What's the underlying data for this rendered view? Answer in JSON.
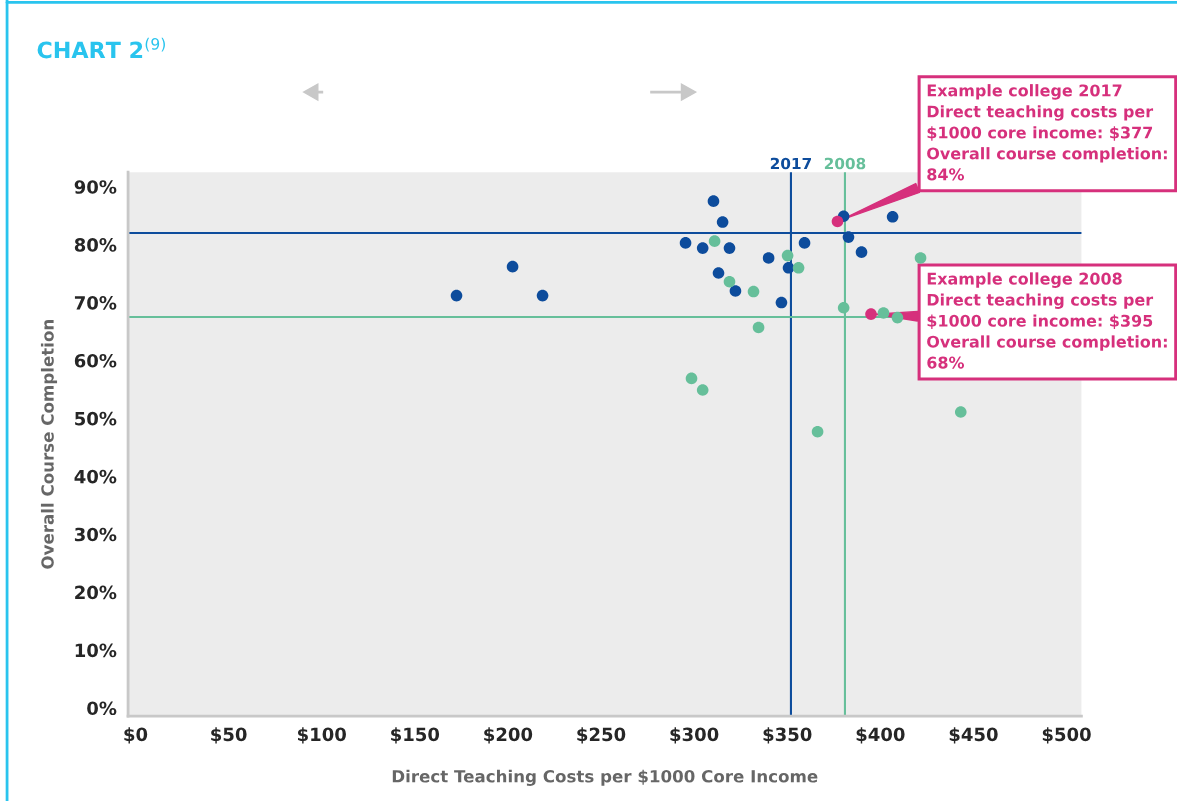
{
  "chart_data": {
    "type": "scatter",
    "title": "CHART 2$^{(9)}$",
    "xlabel": "Direct Teaching Costs per $1000 Core Income",
    "ylabel": "Overall Course Completion",
    "series": [
      {
        "color": "#0d4c9c",
        "x": [
          172.4,
          202.5,
          218.6,
          310.4,
          315.3,
          295.4,
          304.6,
          319.0,
          359.3,
          340.0,
          350.7,
          313.1,
          322.2,
          346.9,
          380.3,
          382.9,
          389.9,
          406.6
        ],
        "values": [
          71.2,
          76.2,
          71.2,
          87.5,
          83.9,
          80.3,
          79.4,
          79.4,
          80.3,
          77.7,
          76.0,
          75.1,
          72.0,
          70.0,
          84.9,
          81.3,
          78.7,
          84.8
        ]
      },
      {
        "color": "#66bf9a",
        "x": [
          311.0,
          350.2,
          356.1,
          319.0,
          331.9,
          334.6,
          380.3,
          401.7,
          409.2,
          421.6,
          298.6,
          304.6,
          366.3,
          443.2
        ],
        "values": [
          80.6,
          78.1,
          76.0,
          73.6,
          71.9,
          65.7,
          69.1,
          68.2,
          67.4,
          77.7,
          56.9,
          54.9,
          47.7,
          51.1
        ]
      },
      {
        "color": "#d6307c",
        "x": [
          377,
          395
        ],
        "values": [
          84,
          68
        ]
      }
    ],
    "annotations": [
      {
        "text": "Example college 2017\nDirect teaching costs per\n$1000 core income: $377\nOverall course completion:\n84%",
        "x": 377,
        "y": 84
      },
      {
        "text": "Example college 2008\nDirect teaching costs per\n$1000 core income: $395\nOverall course completion:\n68%",
        "x": 395,
        "y": 68
      },
      {
        "text": "2017",
        "x": 352,
        "y": 92.5
      },
      {
        "text": "2008",
        "x": 381,
        "y": 92.5
      }
    ],
    "ref_lines": [
      {
        "axis": "x",
        "value": 352,
        "color": "#0d4c9c"
      },
      {
        "axis": "x",
        "value": 381,
        "color": "#66bf9a"
      },
      {
        "axis": "y",
        "value": 82,
        "color": "#0d4c9c"
      },
      {
        "axis": "y",
        "value": 67.5,
        "color": "#66bf9a"
      }
    ],
    "xlim": [
      -4,
      508
    ],
    "xticks": [
      {
        "value": 0,
        "label": "$0"
      },
      {
        "value": 50,
        "label": "$50"
      },
      {
        "value": 100,
        "label": "$100"
      },
      {
        "value": 150,
        "label": "$150"
      },
      {
        "value": 200,
        "label": "$200"
      },
      {
        "value": 250,
        "label": "$250"
      },
      {
        "value": 300,
        "label": "$300"
      },
      {
        "value": 350,
        "label": "$350"
      },
      {
        "value": 400,
        "label": "$400"
      },
      {
        "value": 450,
        "label": "$450"
      },
      {
        "value": 500,
        "label": "$500"
      }
    ],
    "ylim": [
      -1.4,
      92.5
    ],
    "yticks": [
      {
        "value": 0,
        "label": "0%"
      },
      {
        "value": 10,
        "label": "10%"
      },
      {
        "value": 20,
        "label": "20%"
      },
      {
        "value": 30,
        "label": "30%"
      },
      {
        "value": 40,
        "label": "40%"
      },
      {
        "value": 50,
        "label": "50%"
      },
      {
        "value": 60,
        "label": "60%"
      },
      {
        "value": 70,
        "label": "70%"
      },
      {
        "value": 80,
        "label": "80%"
      },
      {
        "value": 90,
        "label": "90%"
      }
    ],
    "grid": false,
    "legend": false,
    "marker": "circle"
  }
}
